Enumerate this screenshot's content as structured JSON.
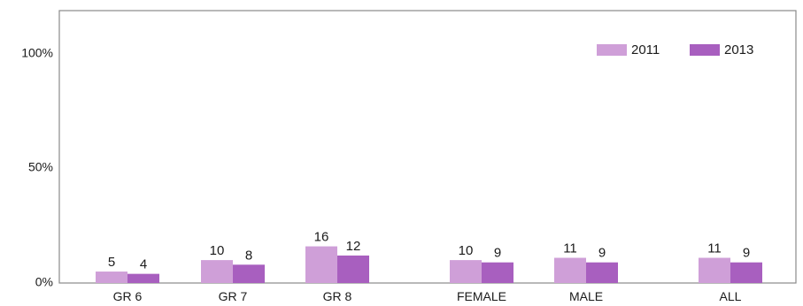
{
  "chart_data": {
    "type": "bar",
    "categories": [
      "GR 6",
      "GR 7",
      "GR 8",
      "FEMALE",
      "MALE",
      "ALL"
    ],
    "series": [
      {
        "name": "2011",
        "values": [
          5,
          10,
          16,
          10,
          11,
          11
        ],
        "labels": [
          "5",
          "10",
          "16",
          "10",
          "11",
          "11"
        ]
      },
      {
        "name": "2013",
        "values": [
          4,
          8,
          12,
          9,
          9,
          9
        ],
        "labels": [
          "4",
          "8",
          "12",
          "9",
          "9",
          "9"
        ]
      }
    ],
    "y_ticks": [
      "0%",
      "50%",
      "100%"
    ],
    "ylim": [
      0,
      100
    ],
    "legend_position": "top-right",
    "grid": false,
    "colors": {
      "2011": "#cf9fd8",
      "2013": "#a85fbf",
      "frame": "#8a8a8a"
    }
  }
}
